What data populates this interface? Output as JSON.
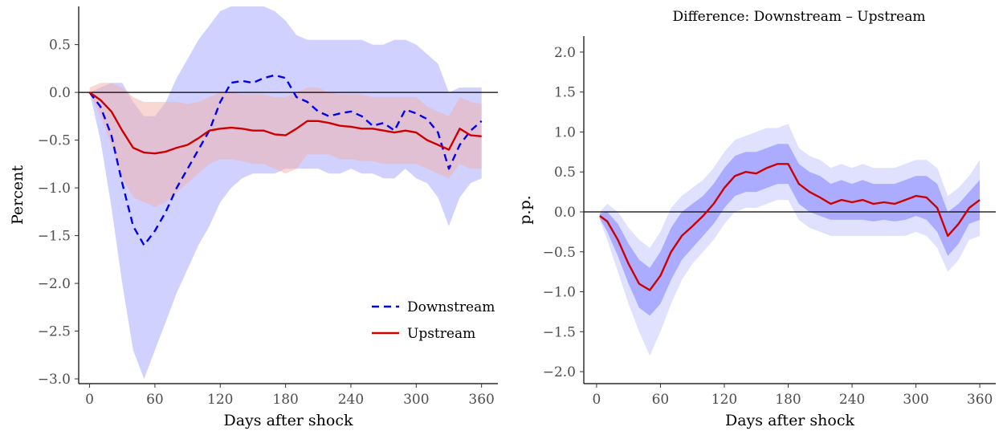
{
  "chart_data": [
    {
      "type": "line",
      "title": "",
      "xlabel": "Days after shock",
      "ylabel": "Percent",
      "xlim": [
        -10,
        375
      ],
      "ylim": [
        -3.05,
        0.9
      ],
      "xticks": [
        0,
        60,
        120,
        180,
        240,
        300,
        360
      ],
      "yticks": [
        0.5,
        0.0,
        -0.5,
        -1.0,
        -1.5,
        -2.0,
        -2.5,
        -3.0
      ],
      "ytick_labels": [
        "0.5",
        "0.0",
        "−0.5",
        "−1.0",
        "−1.5",
        "−2.0",
        "−2.5",
        "−3.0"
      ],
      "grid": false,
      "hline": 0,
      "legend": {
        "position": "bottom-right"
      },
      "series": [
        {
          "name": "Downstream",
          "color": "#0000ee",
          "style": "dashed",
          "band_color": "#9999ff",
          "x": [
            0,
            10,
            20,
            30,
            40,
            50,
            60,
            70,
            80,
            90,
            100,
            110,
            120,
            130,
            140,
            150,
            160,
            170,
            180,
            190,
            200,
            210,
            220,
            230,
            240,
            250,
            260,
            270,
            280,
            290,
            300,
            310,
            320,
            330,
            340,
            350,
            360
          ],
          "values": [
            0.0,
            -0.15,
            -0.45,
            -0.95,
            -1.4,
            -1.6,
            -1.45,
            -1.25,
            -1.0,
            -0.8,
            -0.6,
            -0.4,
            -0.1,
            0.1,
            0.12,
            0.1,
            0.15,
            0.18,
            0.15,
            -0.05,
            -0.1,
            -0.2,
            -0.25,
            -0.22,
            -0.2,
            -0.25,
            -0.35,
            -0.32,
            -0.4,
            -0.18,
            -0.22,
            -0.28,
            -0.42,
            -0.8,
            -0.55,
            -0.4,
            -0.3
          ],
          "lower": [
            0.0,
            -0.5,
            -1.2,
            -2.0,
            -2.7,
            -3.0,
            -2.7,
            -2.4,
            -2.1,
            -1.85,
            -1.6,
            -1.4,
            -1.15,
            -1.0,
            -0.9,
            -0.85,
            -0.85,
            -0.85,
            -0.8,
            -0.8,
            -0.8,
            -0.8,
            -0.85,
            -0.85,
            -0.8,
            -0.85,
            -0.85,
            -0.9,
            -0.9,
            -0.8,
            -0.9,
            -0.95,
            -1.1,
            -1.4,
            -1.1,
            -0.95,
            -0.9
          ],
          "upper": [
            0.0,
            0.05,
            0.1,
            0.1,
            -0.1,
            -0.25,
            -0.25,
            -0.1,
            0.15,
            0.35,
            0.55,
            0.7,
            0.85,
            0.9,
            0.9,
            0.9,
            0.9,
            0.85,
            0.75,
            0.6,
            0.55,
            0.55,
            0.55,
            0.55,
            0.55,
            0.55,
            0.5,
            0.5,
            0.55,
            0.55,
            0.5,
            0.4,
            0.3,
            0.0,
            0.05,
            0.05,
            0.05
          ]
        },
        {
          "name": "Upstream",
          "color": "#cc0000",
          "style": "solid",
          "band_color": "#f4b0a8",
          "x": [
            0,
            10,
            20,
            30,
            40,
            50,
            60,
            70,
            80,
            90,
            100,
            110,
            120,
            130,
            140,
            150,
            160,
            170,
            180,
            190,
            200,
            210,
            220,
            230,
            240,
            250,
            260,
            270,
            280,
            290,
            300,
            310,
            320,
            330,
            340,
            350,
            360
          ],
          "values": [
            0.0,
            -0.08,
            -0.2,
            -0.4,
            -0.58,
            -0.63,
            -0.64,
            -0.62,
            -0.58,
            -0.55,
            -0.48,
            -0.4,
            -0.38,
            -0.37,
            -0.38,
            -0.4,
            -0.4,
            -0.44,
            -0.45,
            -0.38,
            -0.3,
            -0.3,
            -0.32,
            -0.35,
            -0.36,
            -0.38,
            -0.38,
            -0.4,
            -0.42,
            -0.4,
            -0.42,
            -0.5,
            -0.55,
            -0.6,
            -0.38,
            -0.45,
            -0.46
          ],
          "lower": [
            0.0,
            -0.25,
            -0.55,
            -0.9,
            -1.1,
            -1.15,
            -1.2,
            -1.15,
            -1.05,
            -0.95,
            -0.85,
            -0.75,
            -0.7,
            -0.7,
            -0.72,
            -0.75,
            -0.75,
            -0.8,
            -0.85,
            -0.8,
            -0.65,
            -0.65,
            -0.65,
            -0.7,
            -0.7,
            -0.72,
            -0.72,
            -0.75,
            -0.75,
            -0.75,
            -0.75,
            -0.8,
            -0.85,
            -0.9,
            -0.75,
            -0.8,
            -0.8
          ],
          "upper": [
            0.05,
            0.1,
            0.1,
            0.05,
            -0.05,
            -0.1,
            -0.1,
            -0.1,
            -0.1,
            -0.12,
            -0.1,
            -0.05,
            0.0,
            0.0,
            -0.02,
            -0.02,
            -0.02,
            -0.05,
            -0.05,
            0.0,
            0.05,
            0.05,
            0.0,
            -0.02,
            -0.02,
            -0.02,
            -0.05,
            -0.05,
            -0.05,
            -0.05,
            -0.05,
            -0.15,
            -0.2,
            -0.25,
            -0.05,
            -0.1,
            -0.12
          ]
        }
      ]
    },
    {
      "type": "line",
      "title": "Difference: Downstream – Upstream",
      "xlabel": "Days after shock",
      "ylabel": "p.p.",
      "xlim": [
        -12,
        375
      ],
      "ylim": [
        -2.15,
        2.2
      ],
      "xticks": [
        0,
        60,
        120,
        180,
        240,
        300,
        360
      ],
      "yticks": [
        2.0,
        1.5,
        1.0,
        0.5,
        0.0,
        -0.5,
        -1.0,
        -1.5,
        -2.0
      ],
      "ytick_labels": [
        "2.0",
        "1.5",
        "1.0",
        "0.5",
        "0.0",
        "−0.5",
        "−1.0",
        "−1.5",
        "−2.0"
      ],
      "grid": false,
      "hline": 0,
      "series": [
        {
          "color": "#cc0000",
          "band_inner_color": "#9999ff",
          "band_outer_color": "#ddddff",
          "x": [
            3,
            10,
            20,
            30,
            40,
            50,
            60,
            70,
            80,
            90,
            100,
            110,
            120,
            130,
            140,
            150,
            160,
            170,
            180,
            190,
            200,
            210,
            220,
            230,
            240,
            250,
            260,
            270,
            280,
            290,
            300,
            310,
            320,
            330,
            340,
            350,
            360
          ],
          "values": [
            -0.05,
            -0.12,
            -0.35,
            -0.65,
            -0.9,
            -0.98,
            -0.8,
            -0.5,
            -0.3,
            -0.18,
            -0.05,
            0.1,
            0.3,
            0.45,
            0.5,
            0.48,
            0.55,
            0.6,
            0.6,
            0.35,
            0.25,
            0.18,
            0.1,
            0.15,
            0.12,
            0.15,
            0.1,
            0.12,
            0.1,
            0.15,
            0.2,
            0.18,
            0.05,
            -0.3,
            -0.15,
            0.05,
            0.15
          ],
          "inner_lower": [
            -0.08,
            -0.25,
            -0.55,
            -0.9,
            -1.2,
            -1.3,
            -1.15,
            -0.85,
            -0.6,
            -0.45,
            -0.3,
            -0.15,
            0.05,
            0.2,
            0.25,
            0.25,
            0.3,
            0.35,
            0.35,
            0.1,
            0.0,
            -0.05,
            -0.1,
            -0.1,
            -0.1,
            -0.1,
            -0.12,
            -0.1,
            -0.12,
            -0.1,
            -0.05,
            -0.1,
            -0.25,
            -0.55,
            -0.4,
            -0.15,
            -0.1
          ],
          "inner_upper": [
            -0.02,
            0.0,
            -0.15,
            -0.4,
            -0.6,
            -0.7,
            -0.5,
            -0.2,
            0.0,
            0.1,
            0.2,
            0.35,
            0.55,
            0.7,
            0.75,
            0.75,
            0.8,
            0.85,
            0.85,
            0.6,
            0.5,
            0.45,
            0.35,
            0.4,
            0.35,
            0.4,
            0.35,
            0.35,
            0.35,
            0.4,
            0.45,
            0.45,
            0.35,
            0.0,
            0.1,
            0.25,
            0.4
          ],
          "outer_lower": [
            -0.1,
            -0.35,
            -0.75,
            -1.15,
            -1.5,
            -1.8,
            -1.5,
            -1.15,
            -0.85,
            -0.65,
            -0.5,
            -0.35,
            -0.15,
            0.0,
            0.05,
            0.05,
            0.1,
            0.15,
            0.15,
            -0.1,
            -0.2,
            -0.25,
            -0.3,
            -0.3,
            -0.3,
            -0.3,
            -0.3,
            -0.3,
            -0.3,
            -0.3,
            -0.25,
            -0.3,
            -0.45,
            -0.75,
            -0.6,
            -0.35,
            -0.3
          ],
          "outer_upper": [
            0.0,
            0.1,
            0.0,
            -0.2,
            -0.35,
            -0.45,
            -0.25,
            0.05,
            0.2,
            0.3,
            0.4,
            0.55,
            0.75,
            0.9,
            0.95,
            1.0,
            1.05,
            1.05,
            1.1,
            0.8,
            0.7,
            0.65,
            0.55,
            0.6,
            0.55,
            0.6,
            0.55,
            0.55,
            0.55,
            0.6,
            0.65,
            0.65,
            0.55,
            0.2,
            0.3,
            0.45,
            0.65
          ]
        }
      ]
    }
  ]
}
